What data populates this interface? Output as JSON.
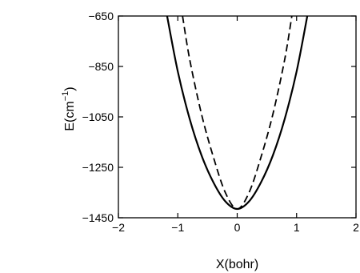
{
  "chart_data": {
    "type": "line",
    "title": "",
    "xlabel": "X(bohr)",
    "ylabel_main": "E(cm",
    "ylabel_sup": "−1",
    "ylabel_close": ")",
    "xlim": [
      -2,
      2
    ],
    "ylim": [
      -1450,
      -650
    ],
    "x_ticks": [
      -2,
      -1,
      0,
      1,
      2
    ],
    "x_tick_labels": [
      "−2",
      "−1",
      "0",
      "1",
      "2"
    ],
    "y_ticks": [
      -1450,
      -1250,
      -1050,
      -850,
      -650
    ],
    "y_tick_labels": [
      "−1450",
      "−1250",
      "−1050",
      "−850",
      "−650"
    ],
    "grid": false,
    "series": [
      {
        "style": "solid",
        "color": "#000000",
        "points": [
          [
            -1.18,
            -650
          ],
          [
            -1.0,
            -870
          ],
          [
            -0.8,
            -1058
          ],
          [
            -0.6,
            -1203
          ],
          [
            -0.4,
            -1310
          ],
          [
            -0.2,
            -1385
          ],
          [
            0.0,
            -1415
          ],
          [
            0.2,
            -1385
          ],
          [
            0.4,
            -1310
          ],
          [
            0.6,
            -1203
          ],
          [
            0.8,
            -1058
          ],
          [
            1.0,
            -870
          ],
          [
            1.18,
            -650
          ]
        ]
      },
      {
        "style": "dashed",
        "color": "#000000",
        "points": [
          [
            -0.92,
            -650
          ],
          [
            -0.8,
            -822
          ],
          [
            -0.6,
            -1040
          ],
          [
            -0.4,
            -1210
          ],
          [
            -0.2,
            -1350
          ],
          [
            0.0,
            -1415
          ],
          [
            0.2,
            -1350
          ],
          [
            0.4,
            -1210
          ],
          [
            0.6,
            -1040
          ],
          [
            0.8,
            -822
          ],
          [
            0.92,
            -650
          ]
        ]
      }
    ]
  }
}
